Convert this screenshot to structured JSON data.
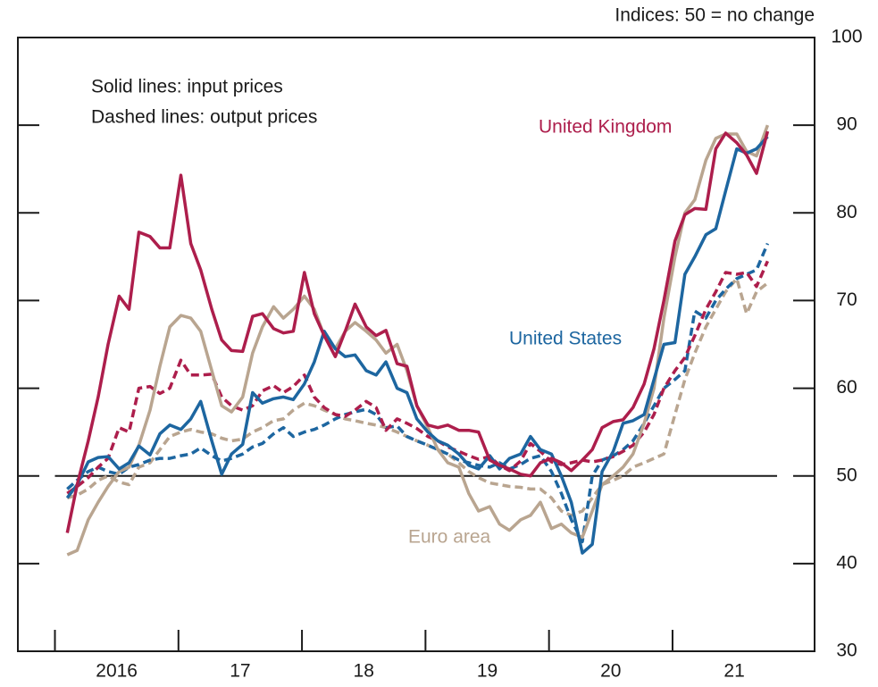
{
  "chart_data": {
    "type": "line",
    "unit_note": "Indices: 50 = no change",
    "annotations": [
      "Solid lines: input prices",
      "Dashed lines: output prices"
    ],
    "xlim": [
      2015.7,
      2022.15
    ],
    "xticks": [
      {
        "value": 2016.5,
        "label": "2016"
      },
      {
        "value": 2017.5,
        "label": "17"
      },
      {
        "value": 2018.5,
        "label": "18"
      },
      {
        "value": 2019.5,
        "label": "19"
      },
      {
        "value": 2020.5,
        "label": "20"
      },
      {
        "value": 2021.5,
        "label": "21"
      }
    ],
    "xtick_marks": [
      2016,
      2017,
      2018,
      2019,
      2020,
      2021
    ],
    "ylim": [
      30,
      100
    ],
    "yticks": [
      30,
      40,
      50,
      60,
      70,
      80,
      90,
      100
    ],
    "reference_line": 50,
    "x": [
      2016.1,
      2016.18,
      2016.27,
      2016.35,
      2016.43,
      2016.52,
      2016.6,
      2016.68,
      2016.77,
      2016.85,
      2016.93,
      2017.02,
      2017.1,
      2017.18,
      2017.27,
      2017.35,
      2017.43,
      2017.52,
      2017.6,
      2017.68,
      2017.77,
      2017.85,
      2017.93,
      2018.02,
      2018.1,
      2018.18,
      2018.27,
      2018.35,
      2018.43,
      2018.52,
      2018.6,
      2018.68,
      2018.77,
      2018.85,
      2018.93,
      2019.02,
      2019.1,
      2019.18,
      2019.27,
      2019.35,
      2019.43,
      2019.52,
      2019.6,
      2019.68,
      2019.77,
      2019.85,
      2019.93,
      2020.02,
      2020.1,
      2020.18,
      2020.27,
      2020.35,
      2020.43,
      2020.52,
      2020.6,
      2020.68,
      2020.77,
      2020.85,
      2020.93,
      2021.02,
      2021.1,
      2021.18,
      2021.27,
      2021.35,
      2021.43,
      2021.52,
      2021.6,
      2021.68,
      2021.77
    ],
    "series": [
      {
        "name": "United Kingdom",
        "color": "#ad1e4c",
        "input": [
          43.5,
          49,
          54,
          59,
          65,
          70.5,
          69,
          77.8,
          77.3,
          76,
          76,
          84.3,
          76.5,
          73.5,
          69,
          65.5,
          64.3,
          64.2,
          68.2,
          68.5,
          66.8,
          66.3,
          66.5,
          73.2,
          68.5,
          66,
          63.6,
          66.5,
          69.6,
          67,
          66,
          66.6,
          62.8,
          62.5,
          58,
          55.8,
          55.5,
          55.8,
          55.2,
          55.2,
          55,
          51.8,
          51.2,
          50.8,
          50.2,
          50,
          51.5,
          52,
          51.5,
          50.6,
          51.8,
          53,
          55.5,
          56.2,
          56.4,
          57.8,
          60.5,
          64.5,
          70,
          76.8,
          79.8,
          80.5,
          80.4,
          87.3,
          89.1,
          88,
          86.6,
          84.5,
          89.3
        ],
        "output": [
          48,
          48.8,
          49.8,
          51,
          52,
          55.5,
          55,
          60,
          60.2,
          59.4,
          60,
          63.2,
          61.5,
          61.5,
          61.6,
          59,
          58,
          57.5,
          58,
          59.7,
          60.3,
          59.5,
          60.2,
          61.5,
          59,
          57.8,
          57,
          56.8,
          57.5,
          58.5,
          57.8,
          55.2,
          56.5,
          56,
          55.4,
          54.5,
          54,
          53.3,
          52.8,
          52.3,
          51.9,
          52.2,
          51.2,
          50.6,
          51.7,
          53.7,
          52.8,
          51.6,
          51.3,
          51.5,
          51.8,
          51.6,
          51.8,
          52.2,
          52.8,
          53.5,
          55,
          57,
          60,
          62,
          63.5,
          66,
          69,
          71,
          73.2,
          73,
          73.2,
          71.6,
          74.5
        ]
      },
      {
        "name": "United States",
        "color": "#1d66a0",
        "input": [
          47.5,
          49,
          51.6,
          52.1,
          52.2,
          50.8,
          51.5,
          53.4,
          52.4,
          54.8,
          55.8,
          55.3,
          56.5,
          58.5,
          54,
          50.2,
          52.5,
          53.6,
          59.5,
          58.3,
          58.8,
          59,
          58.7,
          60.5,
          63,
          66.5,
          64.5,
          63.6,
          63.8,
          62,
          61.5,
          63,
          60,
          59.5,
          56.5,
          55,
          54,
          53.5,
          52.5,
          51.2,
          50.8,
          52.3,
          50.8,
          52,
          52.5,
          54.5,
          53,
          52.5,
          50,
          47,
          41.2,
          42.2,
          50.5,
          52.8,
          56,
          56.3,
          57,
          61,
          65,
          65.2,
          73,
          75,
          77.5,
          78.2,
          82.5,
          87.3,
          86.8,
          87.3,
          88.7
        ],
        "output": [
          48.5,
          49.5,
          50.5,
          51,
          50.5,
          50.2,
          51,
          51.3,
          51.8,
          52,
          52,
          52.3,
          52.5,
          53.2,
          52.3,
          51.7,
          52,
          52.5,
          53.3,
          53.7,
          54.8,
          55.5,
          54.5,
          55,
          55.3,
          55.8,
          56.5,
          57,
          57.3,
          57.6,
          57,
          55.5,
          55.7,
          54.5,
          54,
          53.5,
          53,
          52.5,
          51.8,
          51.5,
          51.2,
          51,
          51.5,
          50.8,
          51.3,
          52,
          52.3,
          50.5,
          48,
          45,
          42.5,
          50,
          51.8,
          52.3,
          53,
          54,
          56,
          58,
          60,
          61,
          62,
          68.8,
          68,
          70,
          71.3,
          72.5,
          73,
          73.5,
          76.5
        ]
      },
      {
        "name": "Euro area",
        "color": "#b9a590",
        "input": [
          41,
          41.5,
          45,
          47,
          48.8,
          50.5,
          51,
          53.5,
          57.5,
          62.5,
          67,
          68.3,
          68,
          66.5,
          62,
          58,
          57.3,
          59,
          64,
          67,
          69.3,
          68,
          69,
          70.5,
          69,
          66,
          64.5,
          66.5,
          67.5,
          66.5,
          65.5,
          64,
          65,
          62,
          58,
          55.5,
          53,
          51.5,
          51,
          48,
          46,
          46.5,
          44.5,
          43.8,
          45,
          45.5,
          47,
          44,
          44.5,
          43.5,
          43,
          46,
          49,
          50,
          51,
          52.5,
          56,
          60,
          68,
          75,
          80,
          81.5,
          86,
          88.5,
          89,
          89,
          87,
          86.5,
          90
        ],
        "output": [
          47.5,
          47.8,
          48.5,
          49.5,
          50,
          49.3,
          49,
          51,
          51.5,
          53,
          54.5,
          55,
          55.3,
          55,
          54.8,
          54.3,
          54,
          54.2,
          55,
          55.5,
          56.3,
          56.5,
          57.5,
          58.3,
          58,
          57.5,
          57,
          56.5,
          56.3,
          56,
          55.8,
          55.5,
          55,
          54.5,
          54,
          53.5,
          53,
          52.5,
          51.5,
          50.5,
          49.8,
          49.2,
          49,
          48.8,
          48.7,
          48.5,
          48.5,
          47.5,
          46,
          45.5,
          46,
          47.5,
          49,
          49.5,
          50,
          51,
          51.5,
          52,
          52.5,
          57,
          61,
          64,
          67,
          69,
          71,
          72.5,
          68.5,
          71,
          72
        ]
      }
    ]
  }
}
